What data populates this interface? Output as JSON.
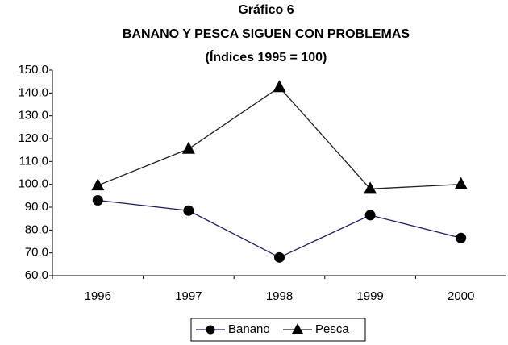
{
  "chart_data": {
    "type": "line",
    "title": "Gráfico 6",
    "subtitle": [
      "BANANO Y PESCA SIGUEN CON PROBLEMAS",
      "(Índices 1995 = 100)"
    ],
    "categories": [
      "1996",
      "1997",
      "1998",
      "1999",
      "2000"
    ],
    "series": [
      {
        "name": "Banano",
        "color": "#1f1f5f",
        "marker": "circle",
        "values": [
          93,
          88.5,
          68,
          86.5,
          76.5
        ]
      },
      {
        "name": "Pesca",
        "color": "#222222",
        "marker": "triangle",
        "values": [
          99.5,
          115.5,
          142.5,
          98,
          100
        ]
      }
    ],
    "ylim": [
      60,
      150
    ],
    "yticks": [
      {
        "value": 60,
        "label": "60.0"
      },
      {
        "value": 70,
        "label": "70.0"
      },
      {
        "value": 80,
        "label": "80.0"
      },
      {
        "value": 90,
        "label": "90.0"
      },
      {
        "value": 100,
        "label": "100.0"
      },
      {
        "value": 110,
        "label": "110.0"
      },
      {
        "value": 120,
        "label": "120.0"
      },
      {
        "value": 130,
        "label": "130.0"
      },
      {
        "value": 140,
        "label": "140.0"
      },
      {
        "value": 150,
        "label": "150.0"
      }
    ],
    "grid": false,
    "legend": "bottom"
  }
}
